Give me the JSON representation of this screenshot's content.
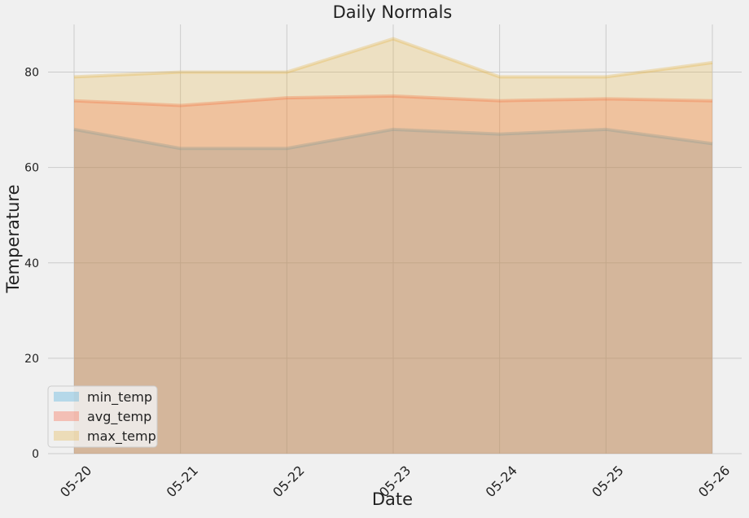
{
  "chart_data": {
    "type": "area",
    "title": "Daily Normals",
    "xlabel": "Date",
    "ylabel": "Temperature",
    "categories": [
      "05-20",
      "05-21",
      "05-22",
      "05-23",
      "05-24",
      "05-25",
      "05-26"
    ],
    "ylim": [
      0,
      90
    ],
    "yticks": [
      0,
      20,
      40,
      60,
      80
    ],
    "grid": true,
    "stacked": false,
    "legend_position": "lower-left",
    "series": [
      {
        "name": "min_temp",
        "values": [
          68,
          64,
          64,
          68,
          67,
          68,
          65
        ],
        "color": "#30a2da"
      },
      {
        "name": "avg_temp",
        "values": [
          74,
          73,
          74.6,
          75,
          74,
          74.4,
          74
        ],
        "color": "#fc4f30"
      },
      {
        "name": "max_temp",
        "values": [
          79,
          80,
          80,
          87,
          79,
          79,
          82
        ],
        "color": "#e5ae38"
      }
    ]
  }
}
